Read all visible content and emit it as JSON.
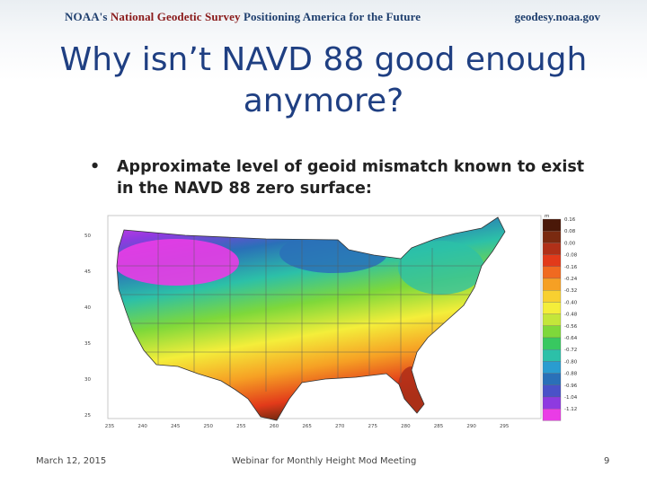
{
  "header": {
    "org_noaa": "NOAA's",
    "org_ngs": "National Geodetic Survey",
    "tagline": "Positioning America for the Future",
    "website": "geodesy.noaa.gov"
  },
  "slide": {
    "title_line1": "Why isn’t NAVD 88 good enough",
    "title_line2": "anymore?",
    "bullet_text": "Approximate level of geoid mismatch known to exist in the NAVD 88 zero surface:"
  },
  "map": {
    "lat_labels": [
      "50",
      "45",
      "40",
      "35",
      "30",
      "25"
    ],
    "lon_labels": [
      "235",
      "240",
      "245",
      "250",
      "255",
      "260",
      "265",
      "270",
      "275",
      "280",
      "285",
      "290",
      "295"
    ],
    "legend_unit": "m",
    "legend_values": [
      "0.16",
      "0.08",
      "0.00",
      "-0.08",
      "-0.16",
      "-0.24",
      "-0.32",
      "-0.40",
      "-0.48",
      "-0.56",
      "-0.64",
      "-0.72",
      "-0.80",
      "-0.88",
      "-0.96",
      "-1.04",
      "-1.12"
    ],
    "legend_colors": [
      "#4a1808",
      "#7a2a10",
      "#b03018",
      "#e23a1a",
      "#f06a20",
      "#f6a024",
      "#f8d030",
      "#f4ee3a",
      "#c4e63a",
      "#7ed83a",
      "#38c860",
      "#2cc0a8",
      "#2a9cd0",
      "#2a70b8",
      "#4a52c8",
      "#8e3ae0",
      "#ea3ce6"
    ]
  },
  "footer": {
    "date": "March 12, 2015",
    "event": "Webinar for Monthly Height Mod Meeting",
    "page": "9"
  }
}
